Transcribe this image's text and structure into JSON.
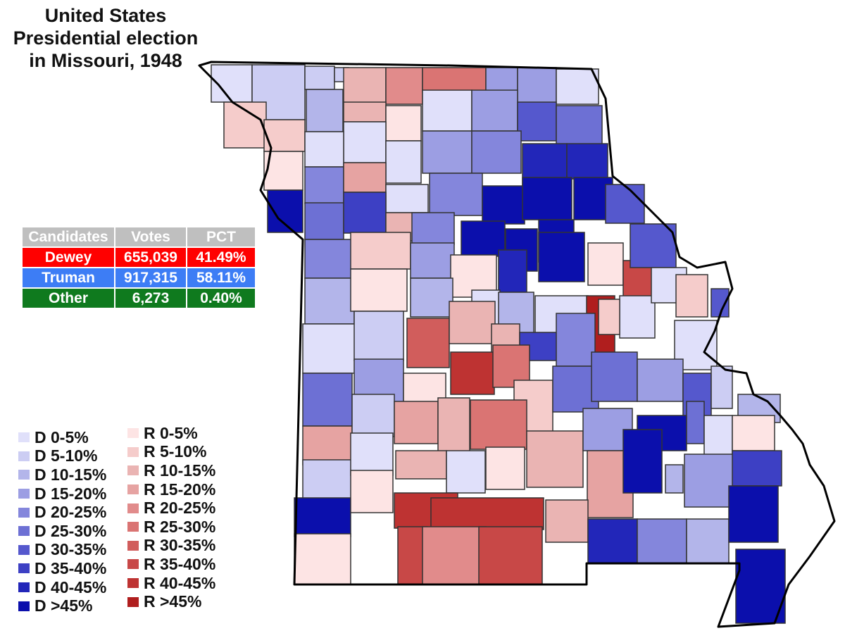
{
  "title": {
    "line1": "United States",
    "line2": "Presidential election",
    "line3": "in Missouri, 1948"
  },
  "results": {
    "headers": [
      "Candidates",
      "Votes",
      "PCT"
    ],
    "rows": [
      {
        "candidate": "Dewey",
        "votes": "655,039",
        "pct": "41.49%",
        "color": "#ff0000"
      },
      {
        "candidate": "Truman",
        "votes": "917,315",
        "pct": "58.11%",
        "color": "#3d7df5"
      },
      {
        "candidate": "Other",
        "votes": "6,273",
        "pct": "0.40%",
        "color": "#0f7a1e"
      }
    ]
  },
  "legend": {
    "democratic": [
      {
        "label": "D 0-5%",
        "color": "#e0e0fa"
      },
      {
        "label": "D 5-10%",
        "color": "#cccdf3"
      },
      {
        "label": "D 10-15%",
        "color": "#b3b5ea"
      },
      {
        "label": "D 15-20%",
        "color": "#9c9ee3"
      },
      {
        "label": "D 20-25%",
        "color": "#8486dc"
      },
      {
        "label": "D 25-30%",
        "color": "#6d70d4"
      },
      {
        "label": "D 30-35%",
        "color": "#5558cd"
      },
      {
        "label": "D 35-40%",
        "color": "#3d40c4"
      },
      {
        "label": "D 40-45%",
        "color": "#2226b9"
      },
      {
        "label": "D >45%",
        "color": "#0b0fac"
      }
    ],
    "republican": [
      {
        "label": "R 0-5%",
        "color": "#fde4e4"
      },
      {
        "label": "R 5-10%",
        "color": "#f5cccb"
      },
      {
        "label": "R 10-15%",
        "color": "#eab4b3"
      },
      {
        "label": "R 15-20%",
        "color": "#e6a3a2"
      },
      {
        "label": "R 20-25%",
        "color": "#e18b8b"
      },
      {
        "label": "R 25-30%",
        "color": "#da7473"
      },
      {
        "label": "R 30-35%",
        "color": "#d15d5c"
      },
      {
        "label": "R 35-40%",
        "color": "#c84847"
      },
      {
        "label": "R 40-45%",
        "color": "#be3332"
      },
      {
        "label": "R >45%",
        "color": "#b01e1e"
      }
    ]
  },
  "map": {
    "state": "Missouri",
    "county_categories": [
      "D 0-5%",
      "D 5-10%",
      "D 5-10%",
      "D 5-10%",
      "R 10-15%",
      "R 20-25%",
      "R 25-30%",
      "D 15-20%",
      "D 15-20%",
      "D 0-5%",
      "R 5-10%",
      "R 5-10%",
      "D 10-15%",
      "R 10-15%",
      "R 0-5%",
      "D 0-5%",
      "D 0-5%",
      "D 15-20%",
      "D 30-35%",
      "D 25-30%",
      "R 0-5%",
      "D 0-5%",
      "D 0-5%",
      "D 15-20%",
      "D 20-25%",
      "D 40-45%",
      "D 40-45%",
      "D >45%",
      "D 20-25%",
      "R 15-20%",
      "D 0-5%",
      "D 20-25%",
      "D >45%",
      "D >45%",
      "D >45%",
      "D 25-30%",
      "D 35-40%",
      "R 10-15%",
      "D 20-25%",
      "D >45%",
      "D >45%",
      "D >45%",
      "D 30-35%",
      "D 20-25%",
      "R 5-10%",
      "D 15-20%",
      "R 0-5%",
      "D 40-45%",
      "D >45%",
      "R 0-5%",
      "R 35-40%",
      "D 30-35%",
      "D 10-15%",
      "R 0-5%",
      "D 10-15%",
      "D 0-5%",
      "D 10-15%",
      "D 0-5%",
      "R >45%",
      "D 0-5%",
      "D 0-5%",
      "R 5-10%",
      "D 30-35%",
      "D 0-5%",
      "D 5-10%",
      "R 30-35%",
      "R 10-15%",
      "R 10-15%",
      "D 35-40%",
      "D 20-25%",
      "R 5-10%",
      "D 0-5%",
      "D 25-30%",
      "D 15-20%",
      "R 0-5%",
      "R 40-45%",
      "R 25-30%",
      "R 5-10%",
      "D 25-30%",
      "D 25-30%",
      "D 15-20%",
      "D 30-35%",
      "D 5-10%",
      "D 10-15%",
      "R 15-20%",
      "D 5-10%",
      "R 15-20%",
      "R 10-15%",
      "R 25-30%",
      "R 10-15%",
      "D 15-20%",
      "D >45%",
      "D 25-30%",
      "D 0-5%",
      "R 0-5%",
      "D 5-10%",
      "D 0-5%",
      "R 10-15%",
      "D 0-5%",
      "R 0-5%",
      "R 15-20%",
      "D >45%",
      "D 10-15%",
      "D 15-20%",
      "D 35-40%",
      "D >45%",
      "R 0-5%",
      "R 0-5%",
      "R 40-45%",
      "R 35-40%",
      "R 40-45%",
      "R 20-25%",
      "R 35-40%",
      "R 10-15%",
      "D 40-45%",
      "D 20-25%",
      "D 10-15%",
      "D >45%",
      "D >45%"
    ]
  }
}
